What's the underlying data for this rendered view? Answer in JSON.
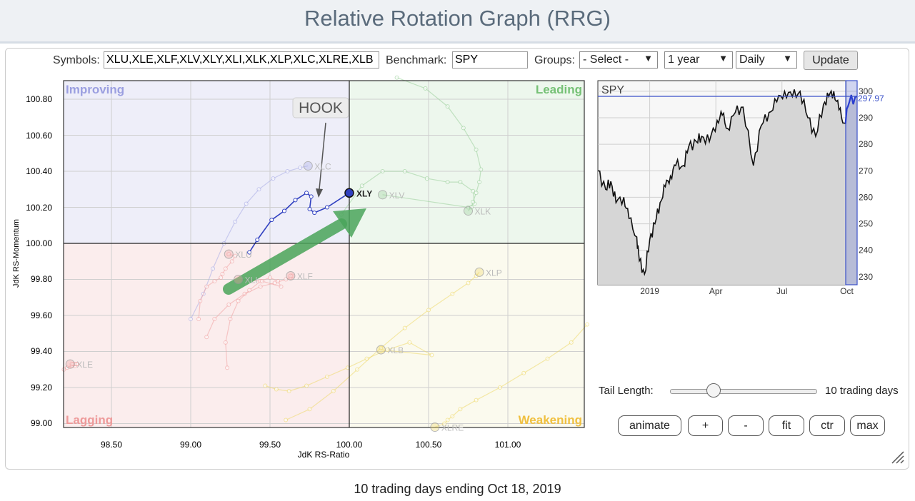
{
  "page_title": "Relative Rotation Graph (RRG)",
  "controls": {
    "symbols_label": "Symbols:",
    "symbols_value": "XLU,XLE,XLF,XLV,XLY,XLI,XLK,XLP,XLC,XLRE,XLB",
    "benchmark_label": "Benchmark:",
    "benchmark_value": "SPY",
    "groups_label": "Groups:",
    "groups_value": "- Select -",
    "period_value": "1 year",
    "frequency_value": "Daily",
    "update_label": "Update"
  },
  "rrg": {
    "quadrants": {
      "improving": "Improving",
      "leading": "Leading",
      "lagging": "Lagging",
      "weakening": "Weakening"
    },
    "xlabel": "JdK RS-Ratio",
    "ylabel": "JdK RS-Momentum",
    "x_ticks": [
      "98.50",
      "99.00",
      "99.50",
      "100.00",
      "100.50",
      "101.00"
    ],
    "y_ticks": [
      "100.80",
      "100.60",
      "100.40",
      "100.20",
      "100.00",
      "99.80",
      "99.60",
      "99.40",
      "99.20",
      "99.00"
    ],
    "annotation": "HOOK",
    "highlight_symbol": "XLY"
  },
  "chart_data": [
    {
      "type": "scatter",
      "title": "",
      "xlabel": "JdK RS-Ratio",
      "ylabel": "JdK RS-Momentum",
      "xlim": [
        98.2,
        101.5
      ],
      "ylim": [
        98.97,
        100.92
      ],
      "grid": true,
      "series": [
        {
          "name": "XLY",
          "x": [
            99.37,
            99.42,
            99.51,
            99.59,
            99.66,
            99.73,
            99.76,
            99.75,
            99.78,
            99.86,
            100.0
          ],
          "y": [
            99.95,
            100.02,
            100.13,
            100.18,
            100.24,
            100.28,
            100.26,
            100.19,
            100.17,
            100.2,
            100.28
          ]
        },
        {
          "name": "XLC",
          "x": [
            99.0,
            99.08,
            99.14,
            99.21,
            99.28,
            99.35,
            99.43,
            99.52,
            99.61,
            99.69,
            99.74
          ],
          "y": [
            99.58,
            99.72,
            99.86,
            100.0,
            100.12,
            100.22,
            100.3,
            100.36,
            100.4,
            100.42,
            100.43
          ]
        },
        {
          "name": "XLV",
          "x": [
            99.95,
            100.08,
            100.21,
            100.35,
            100.49,
            100.62,
            100.7,
            100.78,
            100.79,
            100.75,
            100.21
          ],
          "y": [
            100.16,
            100.32,
            100.4,
            100.4,
            100.36,
            100.34,
            100.34,
            100.29,
            100.22,
            100.2,
            100.27
          ]
        },
        {
          "name": "XLK",
          "x": [
            100.3,
            100.48,
            100.62,
            100.72,
            100.8,
            100.83,
            100.82,
            100.8,
            100.78,
            100.77,
            100.75
          ],
          "y": [
            100.92,
            100.86,
            100.76,
            100.64,
            100.52,
            100.41,
            100.34,
            100.28,
            100.23,
            100.2,
            100.18
          ]
        },
        {
          "name": "XLU",
          "x": [
            99.05,
            99.06,
            99.1,
            99.15,
            99.19,
            99.2,
            99.22,
            99.26,
            99.28,
            99.24,
            99.24
          ],
          "y": [
            99.58,
            99.68,
            99.76,
            99.79,
            99.81,
            99.83,
            99.86,
            99.9,
            99.93,
            99.94,
            99.94
          ]
        },
        {
          "name": "XLF",
          "x": [
            99.1,
            99.15,
            99.24,
            99.34,
            99.44,
            99.53,
            99.6,
            99.63,
            99.64,
            99.63,
            99.63
          ],
          "y": [
            99.48,
            99.58,
            99.66,
            99.72,
            99.76,
            99.78,
            99.8,
            99.81,
            99.82,
            99.82,
            99.82
          ]
        },
        {
          "name": "XLI",
          "x": [
            99.23,
            99.22,
            99.25,
            99.3,
            99.37,
            99.44,
            99.5,
            99.55,
            99.57,
            99.45,
            99.3
          ],
          "y": [
            99.31,
            99.45,
            99.58,
            99.68,
            99.74,
            99.79,
            99.81,
            99.79,
            99.76,
            99.79,
            99.8
          ]
        },
        {
          "name": "XLB",
          "x": [
            99.47,
            99.54,
            99.62,
            99.73,
            99.86,
            99.99,
            100.11,
            100.24,
            100.38,
            100.52,
            100.2
          ],
          "y": [
            99.21,
            99.19,
            99.18,
            99.21,
            99.26,
            99.31,
            99.36,
            99.41,
            99.45,
            99.38,
            99.41
          ]
        },
        {
          "name": "XLP",
          "x": [
            99.6,
            99.75,
            99.9,
            100.05,
            100.2,
            100.35,
            100.5,
            100.65,
            100.75,
            100.8,
            100.82
          ],
          "y": [
            99.02,
            99.08,
            99.18,
            99.3,
            99.42,
            99.53,
            99.63,
            99.72,
            99.78,
            99.82,
            99.84
          ]
        },
        {
          "name": "XLRE",
          "x": [
            101.5,
            101.4,
            101.25,
            101.1,
            100.95,
            100.8,
            100.7,
            100.65,
            100.62,
            100.6,
            100.54
          ],
          "y": [
            99.55,
            99.45,
            99.36,
            99.28,
            99.2,
            99.13,
            99.08,
            99.04,
            99.02,
            99.0,
            98.98
          ]
        },
        {
          "name": "XLE",
          "x": [
            98.2,
            98.22,
            98.25,
            98.27,
            98.28,
            98.28,
            98.28,
            98.27,
            98.26,
            98.25,
            98.24
          ],
          "y": [
            99.3,
            99.31,
            99.32,
            99.32,
            99.33,
            99.33,
            99.33,
            99.33,
            99.33,
            99.33,
            99.33
          ]
        }
      ]
    },
    {
      "type": "area",
      "title": "SPY",
      "x_ticks": [
        "2019",
        "Apr",
        "Jul",
        "Oct"
      ],
      "y_ticks": [
        230,
        240,
        250,
        260,
        270,
        280,
        290,
        300
      ],
      "ylim": [
        227,
        304
      ],
      "last_value_label": "297.97",
      "x": [
        0,
        3,
        5,
        7,
        10,
        12,
        15,
        16,
        18,
        20,
        22,
        24,
        26,
        28,
        30,
        33,
        35,
        38,
        40,
        43,
        46,
        48,
        50,
        53,
        56,
        60,
        63,
        66,
        69,
        72,
        75,
        78,
        81,
        84,
        87,
        89,
        91,
        93,
        95,
        97,
        100
      ],
      "values": [
        270,
        263,
        266,
        258,
        260,
        252,
        245,
        236,
        231,
        244,
        250,
        258,
        264,
        268,
        272,
        272,
        279,
        281,
        283,
        281,
        289,
        291,
        286,
        292,
        294,
        272,
        287,
        292,
        296,
        300,
        298,
        300,
        290,
        283,
        295,
        298,
        300,
        293,
        288,
        296,
        298
      ]
    }
  ],
  "tail": {
    "label": "Tail Length:",
    "value_text": "10 trading days",
    "fraction": 0.3
  },
  "buttons": {
    "animate": "animate",
    "plus": "+",
    "minus": "-",
    "fit": "fit",
    "ctr": "ctr",
    "max": "max"
  },
  "footer": "10 trading days ending Oct 18, 2019",
  "colors": {
    "improving_bg": "#eeeef9",
    "leading_bg": "#edf7ed",
    "lagging_bg": "#fbeded",
    "weakening_bg": "#fbfaee",
    "improving_text": "#9b9fe0",
    "leading_text": "#76c176",
    "lagging_text": "#ee9a9a",
    "weakening_text": "#f0c040",
    "xly_color": "#3040c0",
    "arrow_color": "#4aa55a"
  }
}
